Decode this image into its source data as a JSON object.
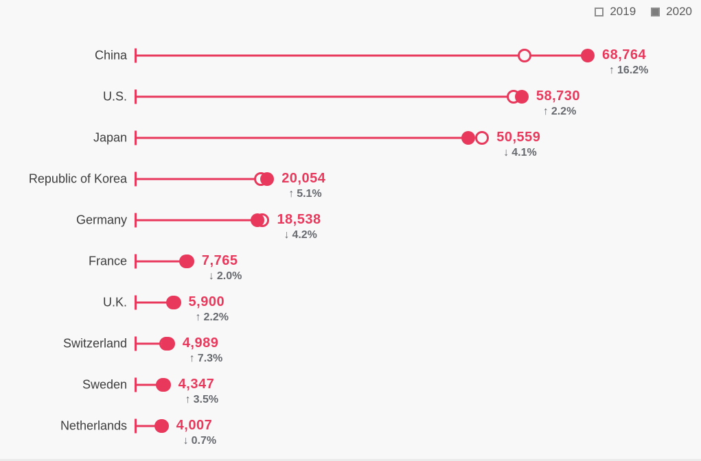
{
  "legend": {
    "items": [
      {
        "label": "2019",
        "swatch": "open-square"
      },
      {
        "label": "2020",
        "swatch": "filled-square"
      }
    ]
  },
  "colors": {
    "accent": "#e8395c",
    "country_label": "#3d3d3d",
    "change_label": "#66696e",
    "legend_text": "#595959",
    "legend_fill": "#7d7d7d",
    "legend_border": "#8e8e8e",
    "background": "#f8f8f8"
  },
  "icons": {
    "up": "↑",
    "down": "↓"
  },
  "chart_data": {
    "type": "dumbbell",
    "title": "",
    "grid": false,
    "legend_position": "top-right",
    "xlim": [
      0,
      68764
    ],
    "categories": [
      "China",
      "U.S.",
      "Japan",
      "Republic of Korea",
      "Germany",
      "France",
      "U.K.",
      "Switzerland",
      "Sweden",
      "Netherlands"
    ],
    "series": [
      {
        "name": "2019",
        "marker": "open-circle",
        "values_estimated_from_pct_change": true,
        "values": [
          59180,
          57470,
          52720,
          19080,
          19350,
          7920,
          5770,
          4650,
          4200,
          4035
        ]
      },
      {
        "name": "2020",
        "marker": "filled-circle",
        "values": [
          68764,
          58730,
          50559,
          20054,
          18538,
          7765,
          5900,
          4989,
          4347,
          4007
        ]
      }
    ],
    "value_labels": [
      "68,764",
      "58,730",
      "50,559",
      "20,054",
      "18,538",
      "7,765",
      "5,900",
      "4,989",
      "4,347",
      "4,007"
    ],
    "changes": [
      {
        "direction": "up",
        "text": "16.2%"
      },
      {
        "direction": "up",
        "text": "2.2%"
      },
      {
        "direction": "down",
        "text": "4.1%"
      },
      {
        "direction": "up",
        "text": "5.1%"
      },
      {
        "direction": "down",
        "text": "4.2%"
      },
      {
        "direction": "down",
        "text": "2.0%"
      },
      {
        "direction": "up",
        "text": "2.2%"
      },
      {
        "direction": "up",
        "text": "7.3%"
      },
      {
        "direction": "up",
        "text": "3.5%"
      },
      {
        "direction": "down",
        "text": "0.7%"
      }
    ]
  }
}
